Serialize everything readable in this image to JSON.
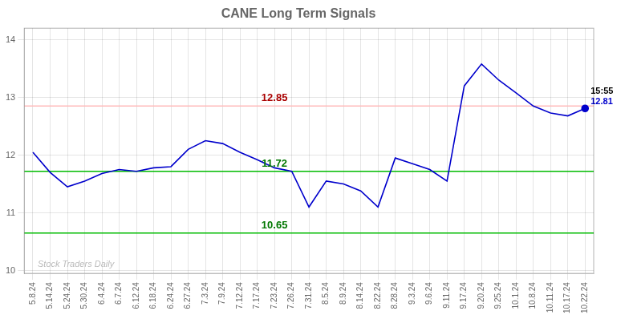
{
  "chart_data": {
    "type": "line",
    "title": "CANE Long Term Signals",
    "categories": [
      "5.8.24",
      "5.14.24",
      "5.24.24",
      "5.30.24",
      "6.4.24",
      "6.7.24",
      "6.12.24",
      "6.18.24",
      "6.24.24",
      "6.27.24",
      "7.3.24",
      "7.9.24",
      "7.12.24",
      "7.17.24",
      "7.23.24",
      "7.26.24",
      "7.31.24",
      "8.5.24",
      "8.9.24",
      "8.14.24",
      "8.22.24",
      "8.28.24",
      "9.3.24",
      "9.6.24",
      "9.11.24",
      "9.17.24",
      "9.20.24",
      "9.25.24",
      "10.1.24",
      "10.8.24",
      "10.11.24",
      "10.17.24",
      "10.22.24"
    ],
    "values": [
      12.05,
      11.7,
      11.45,
      11.55,
      11.68,
      11.75,
      11.72,
      11.78,
      11.8,
      12.1,
      12.25,
      12.2,
      12.05,
      11.92,
      11.78,
      11.72,
      11.1,
      11.55,
      11.5,
      11.38,
      11.1,
      11.95,
      11.85,
      11.75,
      11.55,
      13.2,
      13.58,
      13.3,
      13.08,
      12.85,
      12.73,
      12.68,
      12.81
    ],
    "color": "#0000cc",
    "ylim": [
      9.95,
      14.2
    ],
    "yticks": [
      10,
      11,
      12,
      13,
      14
    ],
    "grid": true,
    "reference_lines": [
      {
        "value": 12.85,
        "color": "#ffbbbb",
        "label": "12.85",
        "label_color": "#aa0000"
      },
      {
        "value": 11.72,
        "color": "#00bb00",
        "label": "11.72",
        "label_color": "#007700"
      },
      {
        "value": 10.65,
        "color": "#00bb00",
        "label": "10.65",
        "label_color": "#007700"
      }
    ],
    "watermark": {
      "text": "Stock Traders Daily",
      "color": "#bbbbbb"
    },
    "end_labels": [
      {
        "text": "15:55",
        "color": "#000000"
      },
      {
        "text": "12.81",
        "color": "#0000cc"
      }
    ]
  }
}
